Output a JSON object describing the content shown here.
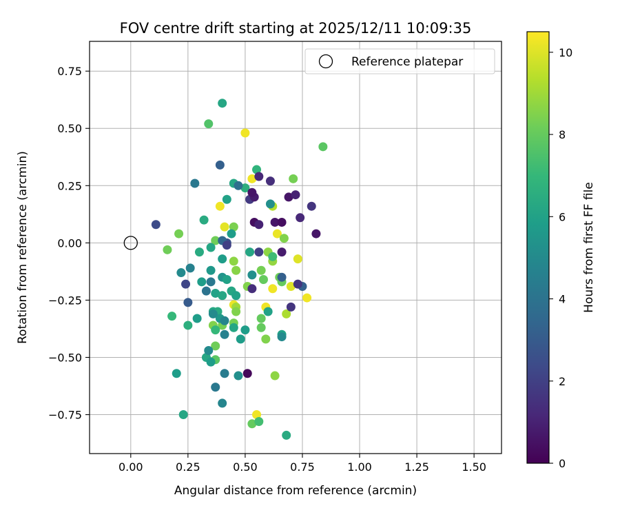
{
  "chart_data": {
    "type": "scatter",
    "title": "FOV centre drift starting at 2025/12/11 10:09:35",
    "xlabel": "Angular distance from reference (arcmin)",
    "ylabel": "Rotation from reference (arcmin)",
    "xlim": [
      -0.18,
      1.62
    ],
    "ylim": [
      -0.92,
      0.88
    ],
    "xticks": [
      0.0,
      0.25,
      0.5,
      0.75,
      1.0,
      1.25,
      1.5
    ],
    "xtick_labels": [
      "0.00",
      "0.25",
      "0.50",
      "0.75",
      "1.00",
      "1.25",
      "1.50"
    ],
    "yticks": [
      -0.75,
      -0.5,
      -0.25,
      0.0,
      0.25,
      0.5,
      0.75
    ],
    "ytick_labels": [
      "−0.75",
      "−0.50",
      "−0.25",
      "0.00",
      "0.25",
      "0.50",
      "0.75"
    ],
    "grid": true,
    "legend": {
      "position": "top-right",
      "entries": [
        "Reference platepar"
      ]
    },
    "reference_point": {
      "name": "Reference platepar",
      "x": 0.0,
      "y": 0.0
    },
    "colorbar": {
      "label": "Hours from first FF file",
      "min": 0,
      "max": 10.5,
      "colormap": "viridis",
      "ticks": [
        0,
        2,
        4,
        6,
        8,
        10
      ],
      "tick_labels": [
        "0",
        "2",
        "4",
        "6",
        "8",
        "10"
      ]
    },
    "series": [
      {
        "points": [
          {
            "x": 0.5,
            "y": 0.48,
            "t": 10.3
          },
          {
            "x": 0.53,
            "y": 0.28,
            "t": 10.3
          },
          {
            "x": 0.39,
            "y": 0.16,
            "t": 10.3
          },
          {
            "x": 0.41,
            "y": 0.07,
            "t": 10.1
          },
          {
            "x": 0.64,
            "y": 0.04,
            "t": 10.2
          },
          {
            "x": 0.73,
            "y": -0.07,
            "t": 10.0
          },
          {
            "x": 0.62,
            "y": -0.2,
            "t": 10.3
          },
          {
            "x": 0.7,
            "y": -0.19,
            "t": 10.0
          },
          {
            "x": 0.77,
            "y": -0.24,
            "t": 10.3
          },
          {
            "x": 0.59,
            "y": -0.28,
            "t": 10.3
          },
          {
            "x": 0.45,
            "y": -0.27,
            "t": 10.2
          },
          {
            "x": 0.55,
            "y": -0.75,
            "t": 10.3
          },
          {
            "x": 0.16,
            "y": -0.03,
            "t": 8.2
          },
          {
            "x": 0.21,
            "y": 0.04,
            "t": 8.3
          },
          {
            "x": 0.34,
            "y": 0.52,
            "t": 7.6
          },
          {
            "x": 0.84,
            "y": 0.42,
            "t": 7.8
          },
          {
            "x": 0.71,
            "y": 0.28,
            "t": 8.3
          },
          {
            "x": 0.62,
            "y": 0.16,
            "t": 9.3
          },
          {
            "x": 0.45,
            "y": 0.07,
            "t": 8.4
          },
          {
            "x": 0.37,
            "y": 0.01,
            "t": 8.2
          },
          {
            "x": 0.67,
            "y": 0.02,
            "t": 8.5
          },
          {
            "x": 0.6,
            "y": -0.04,
            "t": 8.7
          },
          {
            "x": 0.62,
            "y": -0.08,
            "t": 8.8
          },
          {
            "x": 0.57,
            "y": -0.12,
            "t": 8.3
          },
          {
            "x": 0.45,
            "y": -0.08,
            "t": 8.7
          },
          {
            "x": 0.46,
            "y": -0.12,
            "t": 8.6
          },
          {
            "x": 0.65,
            "y": -0.15,
            "t": 8.2
          },
          {
            "x": 0.66,
            "y": -0.17,
            "t": 8.0
          },
          {
            "x": 0.58,
            "y": -0.16,
            "t": 8.0
          },
          {
            "x": 0.51,
            "y": -0.19,
            "t": 8.5
          },
          {
            "x": 0.46,
            "y": -0.28,
            "t": 9.0
          },
          {
            "x": 0.46,
            "y": -0.3,
            "t": 8.5
          },
          {
            "x": 0.57,
            "y": -0.33,
            "t": 8.0
          },
          {
            "x": 0.45,
            "y": -0.35,
            "t": 8.3
          },
          {
            "x": 0.36,
            "y": -0.36,
            "t": 8.5
          },
          {
            "x": 0.4,
            "y": -0.36,
            "t": 8.3
          },
          {
            "x": 0.57,
            "y": -0.37,
            "t": 8.0
          },
          {
            "x": 0.68,
            "y": -0.31,
            "t": 9.2
          },
          {
            "x": 0.59,
            "y": -0.42,
            "t": 8.5
          },
          {
            "x": 0.37,
            "y": -0.45,
            "t": 8.2
          },
          {
            "x": 0.37,
            "y": -0.51,
            "t": 7.8
          },
          {
            "x": 0.63,
            "y": -0.58,
            "t": 8.7
          },
          {
            "x": 0.53,
            "y": -0.79,
            "t": 8.0
          },
          {
            "x": 0.56,
            "y": -0.78,
            "t": 7.3
          },
          {
            "x": 0.4,
            "y": 0.61,
            "t": 6.2
          },
          {
            "x": 0.55,
            "y": 0.32,
            "t": 6.8
          },
          {
            "x": 0.45,
            "y": 0.26,
            "t": 6.2
          },
          {
            "x": 0.5,
            "y": 0.24,
            "t": 6.6
          },
          {
            "x": 0.42,
            "y": 0.19,
            "t": 6.0
          },
          {
            "x": 0.32,
            "y": 0.1,
            "t": 6.4
          },
          {
            "x": 0.44,
            "y": 0.04,
            "t": 5.8
          },
          {
            "x": 0.35,
            "y": -0.02,
            "t": 6.2
          },
          {
            "x": 0.3,
            "y": -0.04,
            "t": 6.4
          },
          {
            "x": 0.52,
            "y": -0.04,
            "t": 6.2
          },
          {
            "x": 0.4,
            "y": -0.07,
            "t": 5.8
          },
          {
            "x": 0.35,
            "y": -0.12,
            "t": 5.6
          },
          {
            "x": 0.4,
            "y": -0.15,
            "t": 5.4
          },
          {
            "x": 0.42,
            "y": -0.16,
            "t": 6.0
          },
          {
            "x": 0.31,
            "y": -0.17,
            "t": 5.8
          },
          {
            "x": 0.37,
            "y": -0.22,
            "t": 6.0
          },
          {
            "x": 0.4,
            "y": -0.23,
            "t": 6.2
          },
          {
            "x": 0.44,
            "y": -0.21,
            "t": 6.2
          },
          {
            "x": 0.46,
            "y": -0.23,
            "t": 6.0
          },
          {
            "x": 0.36,
            "y": -0.3,
            "t": 6.2
          },
          {
            "x": 0.38,
            "y": -0.3,
            "t": 6.4
          },
          {
            "x": 0.39,
            "y": -0.33,
            "t": 5.6
          },
          {
            "x": 0.29,
            "y": -0.33,
            "t": 5.8
          },
          {
            "x": 0.45,
            "y": -0.37,
            "t": 6.2
          },
          {
            "x": 0.5,
            "y": -0.38,
            "t": 5.8
          },
          {
            "x": 0.37,
            "y": -0.38,
            "t": 7.0
          },
          {
            "x": 0.48,
            "y": -0.42,
            "t": 5.8
          },
          {
            "x": 0.6,
            "y": -0.3,
            "t": 6.0
          },
          {
            "x": 0.33,
            "y": -0.5,
            "t": 6.2
          },
          {
            "x": 0.35,
            "y": -0.52,
            "t": 5.8
          },
          {
            "x": 0.2,
            "y": -0.57,
            "t": 5.8
          },
          {
            "x": 0.23,
            "y": -0.75,
            "t": 6.2
          },
          {
            "x": 0.68,
            "y": -0.84,
            "t": 6.4
          },
          {
            "x": 0.66,
            "y": -0.4,
            "t": 6.0
          },
          {
            "x": 0.18,
            "y": -0.32,
            "t": 7.0
          },
          {
            "x": 0.25,
            "y": -0.36,
            "t": 6.6
          },
          {
            "x": 0.53,
            "y": -0.14,
            "t": 5.2
          },
          {
            "x": 0.62,
            "y": -0.06,
            "t": 7.2
          },
          {
            "x": 0.28,
            "y": 0.26,
            "t": 4.2
          },
          {
            "x": 0.39,
            "y": 0.34,
            "t": 3.2
          },
          {
            "x": 0.47,
            "y": 0.25,
            "t": 3.8
          },
          {
            "x": 0.42,
            "y": 0.0,
            "t": 2.6
          },
          {
            "x": 0.4,
            "y": 0.01,
            "t": 3.5
          },
          {
            "x": 0.26,
            "y": -0.11,
            "t": 4.6
          },
          {
            "x": 0.22,
            "y": -0.13,
            "t": 5.0
          },
          {
            "x": 0.35,
            "y": -0.17,
            "t": 4.2
          },
          {
            "x": 0.33,
            "y": -0.21,
            "t": 4.0
          },
          {
            "x": 0.25,
            "y": -0.26,
            "t": 3.0
          },
          {
            "x": 0.36,
            "y": -0.31,
            "t": 5.0
          },
          {
            "x": 0.41,
            "y": -0.34,
            "t": 4.8
          },
          {
            "x": 0.41,
            "y": -0.4,
            "t": 4.6
          },
          {
            "x": 0.34,
            "y": -0.47,
            "t": 5.0
          },
          {
            "x": 0.41,
            "y": -0.57,
            "t": 4.4
          },
          {
            "x": 0.47,
            "y": -0.58,
            "t": 5.2
          },
          {
            "x": 0.37,
            "y": -0.63,
            "t": 4.2
          },
          {
            "x": 0.4,
            "y": -0.7,
            "t": 4.8
          },
          {
            "x": 0.66,
            "y": -0.15,
            "t": 3.2
          },
          {
            "x": 0.75,
            "y": -0.19,
            "t": 3.2
          },
          {
            "x": 0.66,
            "y": -0.41,
            "t": 5.0
          },
          {
            "x": 0.61,
            "y": 0.17,
            "t": 5.2
          },
          {
            "x": 0.11,
            "y": 0.08,
            "t": 2.4
          },
          {
            "x": 0.24,
            "y": -0.18,
            "t": 2.2
          },
          {
            "x": 0.42,
            "y": -0.01,
            "t": 2.0
          },
          {
            "x": 0.56,
            "y": 0.29,
            "t": 1.2
          },
          {
            "x": 0.61,
            "y": 0.27,
            "t": 1.4
          },
          {
            "x": 0.52,
            "y": 0.19,
            "t": 1.8
          },
          {
            "x": 0.54,
            "y": 0.2,
            "t": 0.8
          },
          {
            "x": 0.53,
            "y": 0.22,
            "t": 0.6
          },
          {
            "x": 0.69,
            "y": 0.2,
            "t": 0.6
          },
          {
            "x": 0.72,
            "y": 0.21,
            "t": 1.0
          },
          {
            "x": 0.79,
            "y": 0.16,
            "t": 1.6
          },
          {
            "x": 0.74,
            "y": 0.11,
            "t": 1.2
          },
          {
            "x": 0.54,
            "y": 0.09,
            "t": 0.4
          },
          {
            "x": 0.56,
            "y": 0.08,
            "t": 1.0
          },
          {
            "x": 0.63,
            "y": 0.09,
            "t": 0.6
          },
          {
            "x": 0.66,
            "y": 0.09,
            "t": 0.4
          },
          {
            "x": 0.81,
            "y": 0.04,
            "t": 0.6
          },
          {
            "x": 0.66,
            "y": -0.04,
            "t": 0.8
          },
          {
            "x": 0.56,
            "y": -0.04,
            "t": 2.0
          },
          {
            "x": 0.73,
            "y": -0.18,
            "t": 1.6
          },
          {
            "x": 0.53,
            "y": -0.2,
            "t": 1.4
          },
          {
            "x": 0.7,
            "y": -0.28,
            "t": 1.6
          },
          {
            "x": 0.51,
            "y": -0.57,
            "t": 0.2
          }
        ]
      }
    ]
  }
}
